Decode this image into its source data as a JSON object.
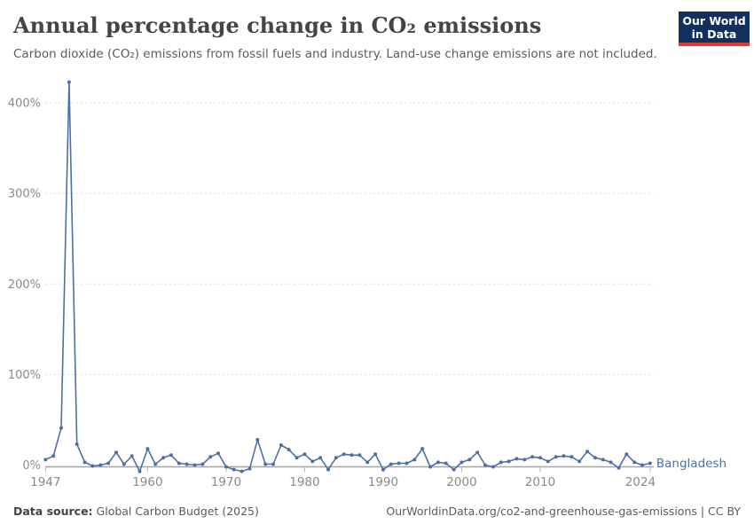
{
  "header": {
    "title": "Annual percentage change in CO₂ emissions",
    "subtitle": "Carbon dioxide (CO₂) emissions from fossil fuels and industry. Land-use change emissions are not included.",
    "logo_line1": "Our World",
    "logo_line2": "in Data"
  },
  "footer": {
    "source_label": "Data source:",
    "source_value": " Global Carbon Budget (2025)",
    "link": "OurWorldinData.org/co2-and-greenhouse-gas-emissions | CC BY"
  },
  "colors": {
    "line": "#4e6fa5",
    "entity_label": "#4e6fa5",
    "grid_dashed": "#dddddd",
    "zero_line": "#a5a5a5",
    "tick_text": "#8a8a8a",
    "tick_mark": "#b3b3b3",
    "logo_bg": "#12305d",
    "logo_bar": "#e2392f"
  },
  "chart_data": {
    "type": "line",
    "title": "Annual percentage change in CO₂ emissions",
    "entity_label": "Bangladesh",
    "xlabel": "",
    "ylabel": "",
    "grid": "horizontal-dashed",
    "legend_position": "end-of-line",
    "ylim": [
      -10,
      430
    ],
    "xlim": [
      1947,
      2024
    ],
    "y_ticks": [
      0,
      100,
      200,
      300,
      400
    ],
    "y_tick_suffix": "%",
    "x_ticks": [
      1947,
      1960,
      1970,
      1980,
      1990,
      2000,
      2010,
      2024
    ],
    "x": [
      1947,
      1948,
      1949,
      1950,
      1951,
      1952,
      1953,
      1954,
      1955,
      1956,
      1957,
      1958,
      1959,
      1960,
      1961,
      1962,
      1963,
      1964,
      1965,
      1966,
      1967,
      1968,
      1969,
      1970,
      1971,
      1972,
      1973,
      1974,
      1975,
      1976,
      1977,
      1978,
      1979,
      1980,
      1981,
      1982,
      1983,
      1984,
      1985,
      1986,
      1987,
      1988,
      1989,
      1990,
      1991,
      1992,
      1993,
      1994,
      1995,
      1996,
      1997,
      1998,
      1999,
      2000,
      2001,
      2002,
      2003,
      2004,
      2005,
      2006,
      2007,
      2008,
      2009,
      2010,
      2011,
      2012,
      2013,
      2014,
      2015,
      2016,
      2017,
      2018,
      2019,
      2020,
      2021,
      2022,
      2023,
      2024
    ],
    "series": [
      {
        "name": "Bangladesh",
        "values": [
          6,
          10,
          41,
          423,
          23,
          3,
          -1,
          0,
          2,
          14,
          1,
          10,
          -7,
          18,
          1,
          8,
          11,
          2,
          1,
          0,
          1,
          9,
          13,
          -2,
          -5,
          -7,
          -4,
          28,
          1,
          1,
          22,
          17,
          8,
          12,
          4,
          8,
          -5,
          8,
          12,
          11,
          11,
          3,
          12,
          -5,
          1,
          2,
          2,
          6,
          18,
          -2,
          3,
          2,
          -5,
          3,
          6,
          14,
          0,
          -2,
          3,
          4,
          7,
          6,
          9,
          8,
          4,
          9,
          10,
          9,
          4,
          15,
          8,
          6,
          3,
          -3,
          12,
          3,
          0,
          2
        ]
      }
    ]
  }
}
